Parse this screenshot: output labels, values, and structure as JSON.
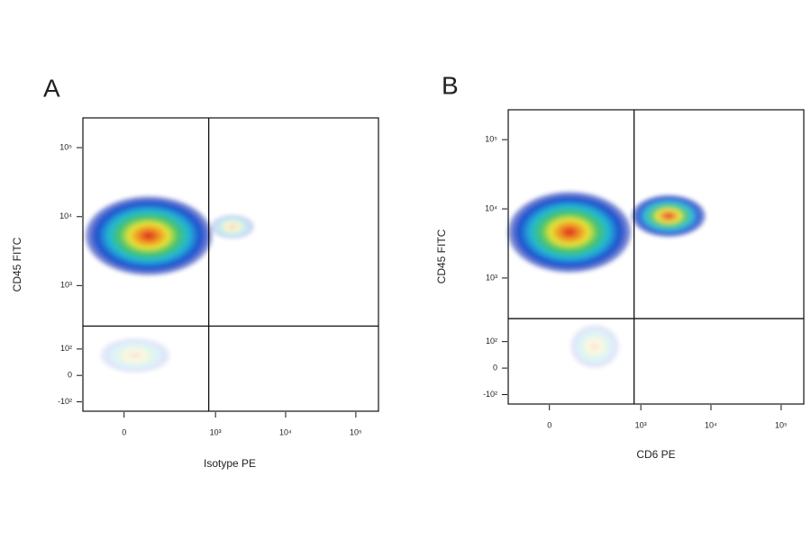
{
  "chart_data": [
    {
      "type": "flow-density",
      "panel_label": "A",
      "x_label": "Isotype PE",
      "y_label": "CD45 FITC",
      "xlim": [
        -180,
        210000
      ],
      "ylim": [
        -150,
        270000
      ],
      "xticks": [
        0,
        {
          "value": 1000,
          "label": "10³"
        },
        {
          "value": 10000,
          "label": "10⁴"
        },
        {
          "value": 100000,
          "label": "10⁵"
        }
      ],
      "yticks": [
        {
          "value": -100,
          "label": "-10²"
        },
        0,
        {
          "value": 100,
          "label": "10²"
        },
        {
          "value": 1000,
          "label": "10³"
        },
        {
          "value": 10000,
          "label": "10⁴"
        },
        {
          "value": 100000,
          "label": "10⁵"
        }
      ],
      "gate_x": 800,
      "gate_y": 250
    },
    {
      "type": "flow-density",
      "panel_label": "B",
      "x_label": "CD6 PE",
      "y_label": "CD45 FITC",
      "xlim": [
        -180,
        210000
      ],
      "ylim": [
        -150,
        270000
      ],
      "xticks": [
        0,
        {
          "value": 1000,
          "label": "10³"
        },
        {
          "value": 10000,
          "label": "10⁴"
        },
        {
          "value": 100000,
          "label": "10⁵"
        }
      ],
      "yticks": [
        {
          "value": -100,
          "label": "-10²"
        },
        0,
        {
          "value": 100,
          "label": "10²"
        },
        {
          "value": 1000,
          "label": "10³"
        },
        {
          "value": 10000,
          "label": "10⁴"
        },
        {
          "value": 100000,
          "label": "10⁵"
        }
      ],
      "gate_x": 800,
      "gate_y": 250
    }
  ]
}
